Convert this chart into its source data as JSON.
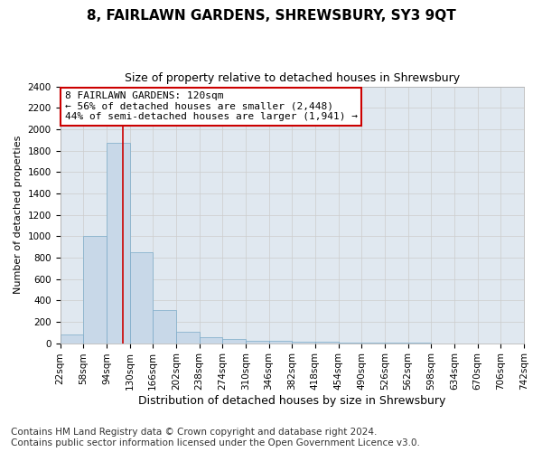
{
  "title": "8, FAIRLAWN GARDENS, SHREWSBURY, SY3 9QT",
  "subtitle": "Size of property relative to detached houses in Shrewsbury",
  "xlabel": "Distribution of detached houses by size in Shrewsbury",
  "ylabel": "Number of detached properties",
  "bar_color": "#c8d8e8",
  "bar_edge_color": "#7aaac8",
  "grid_color": "#cccccc",
  "bg_color": "#e0e8f0",
  "annotation_line_color": "#cc0000",
  "annotation_box_color": "#cc0000",
  "annotation_text": "8 FAIRLAWN GARDENS: 120sqm\n← 56% of detached houses are smaller (2,448)\n44% of semi-detached houses are larger (1,941) →",
  "property_size": 120,
  "bin_edges": [
    22,
    58,
    94,
    130,
    166,
    202,
    238,
    274,
    310,
    346,
    382,
    418,
    454,
    490,
    526,
    562,
    598,
    634,
    670,
    706,
    742
  ],
  "bar_heights": [
    80,
    1000,
    1875,
    850,
    310,
    110,
    55,
    40,
    25,
    20,
    10,
    10,
    5,
    2,
    1,
    1,
    0,
    0,
    0,
    0
  ],
  "ylim": [
    0,
    2400
  ],
  "yticks": [
    0,
    200,
    400,
    600,
    800,
    1000,
    1200,
    1400,
    1600,
    1800,
    2000,
    2200,
    2400
  ],
  "footer": "Contains HM Land Registry data © Crown copyright and database right 2024.\nContains public sector information licensed under the Open Government Licence v3.0.",
  "footer_fontsize": 7.5,
  "title_fontsize": 11,
  "subtitle_fontsize": 9,
  "xlabel_fontsize": 9,
  "ylabel_fontsize": 8,
  "tick_fontsize": 7.5,
  "annot_fontsize": 8
}
